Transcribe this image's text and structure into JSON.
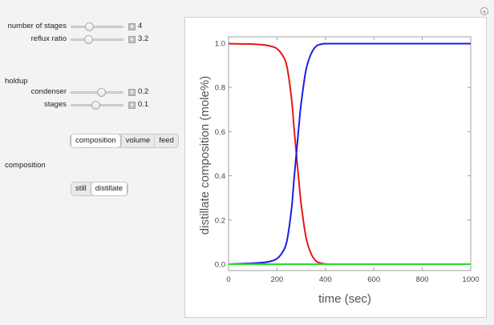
{
  "controls": {
    "number_of_stages": {
      "label": "number of stages",
      "value": "4",
      "level": 0.33
    },
    "reflux_ratio": {
      "label": "reflux ratio",
      "value": "3.2",
      "level": 0.3
    },
    "holdup_heading": "holdup",
    "condenser": {
      "label": "condenser",
      "value": "0.2",
      "level": 0.6
    },
    "stages": {
      "label": "stages",
      "value": "0.1",
      "level": 0.47
    }
  },
  "view_selector": {
    "options": [
      "composition",
      "volume",
      "feed"
    ],
    "selected": "composition"
  },
  "composition_heading": "composition",
  "composition_selector": {
    "options": [
      "still",
      "distillate"
    ],
    "selected": "distillate"
  },
  "icons": {
    "corner": "plus-circle-icon",
    "increment": "plus-square-icon"
  },
  "chart_data": {
    "type": "line",
    "xlabel": "time (sec)",
    "ylabel": "distillate composition (mole%)",
    "xlim": [
      0,
      1000
    ],
    "ylim": [
      0,
      1
    ],
    "xticks": [
      0,
      200,
      400,
      600,
      800,
      1000
    ],
    "yticks": [
      "0.0",
      "0.2",
      "0.4",
      "0.6",
      "0.8",
      "1.0"
    ],
    "grid": false,
    "series": [
      {
        "color": "#e31a1c",
        "x": [
          0,
          50,
          100,
          150,
          180,
          200,
          220,
          240,
          260,
          270,
          280,
          290,
          300,
          320,
          340,
          360,
          380,
          400,
          450,
          500,
          600,
          800,
          1000
        ],
        "y": [
          0.998,
          0.997,
          0.996,
          0.992,
          0.985,
          0.975,
          0.95,
          0.9,
          0.75,
          0.62,
          0.5,
          0.38,
          0.27,
          0.12,
          0.05,
          0.015,
          0.005,
          0.001,
          0,
          0,
          0,
          0,
          0
        ]
      },
      {
        "color": "#1d1de0",
        "x": [
          0,
          50,
          100,
          150,
          180,
          200,
          220,
          240,
          260,
          270,
          280,
          290,
          300,
          320,
          340,
          360,
          380,
          400,
          450,
          500,
          600,
          800,
          1000
        ],
        "y": [
          0,
          0.002,
          0.004,
          0.008,
          0.015,
          0.025,
          0.05,
          0.1,
          0.25,
          0.38,
          0.5,
          0.62,
          0.73,
          0.88,
          0.95,
          0.985,
          0.995,
          0.998,
          0.998,
          0.998,
          0.998,
          0.998,
          0.998
        ]
      },
      {
        "color": "#22dd22",
        "x": [
          0,
          1000
        ],
        "y": [
          0,
          0
        ]
      }
    ]
  }
}
